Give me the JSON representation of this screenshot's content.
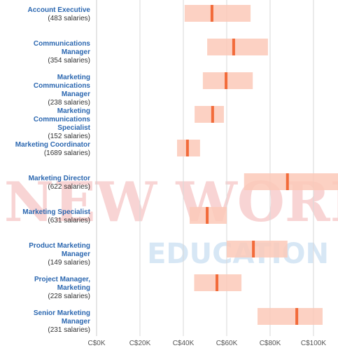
{
  "chart_data": {
    "type": "range",
    "categories": [
      "Account Executive",
      "Communications Manager",
      "Marketing Communications Manager",
      "Marketing Communications Specialist",
      "Marketing Coordinator",
      "Marketing Director",
      "Marketing Specialist",
      "Product Marketing Manager",
      "Project Manager, Marketing",
      "Senior Marketing Manager"
    ],
    "count_labels": [
      "(483 salaries)",
      "(354 salaries)",
      "(238 salaries)",
      "(152 salaries)",
      "(1689 salaries)",
      "(622 salaries)",
      "(631 salaries)",
      "(149 salaries)",
      "(228 salaries)",
      "(231 salaries)"
    ],
    "series": [
      {
        "name": "low",
        "values": [
          40.6,
          51,
          49,
          45.2,
          37.1,
          68,
          42.9,
          60,
          45,
          74.2
        ]
      },
      {
        "name": "high",
        "values": [
          71,
          79,
          72,
          58.7,
          47.7,
          111.3,
          60,
          88,
          66.8,
          104.2
        ]
      },
      {
        "name": "median",
        "values": [
          53.2,
          63.2,
          59.7,
          53.5,
          41.9,
          88,
          51,
          72.3,
          55.5,
          92.3
        ]
      }
    ],
    "range_color": "#fcc9b8",
    "median_color": "#f26b3a",
    "xlim": [
      0,
      111.3
    ],
    "xticks": [
      {
        "value": 0,
        "label": "C$0K"
      },
      {
        "value": 20,
        "label": "C$20K"
      },
      {
        "value": 40,
        "label": "C$40K"
      },
      {
        "value": 60,
        "label": "C$60K"
      },
      {
        "value": 80,
        "label": "C$80K"
      },
      {
        "value": 100,
        "label": "C$100K"
      }
    ],
    "grid": true
  },
  "watermark": {
    "line1": "NEW WORLD",
    "line2": "EDUCATION"
  }
}
